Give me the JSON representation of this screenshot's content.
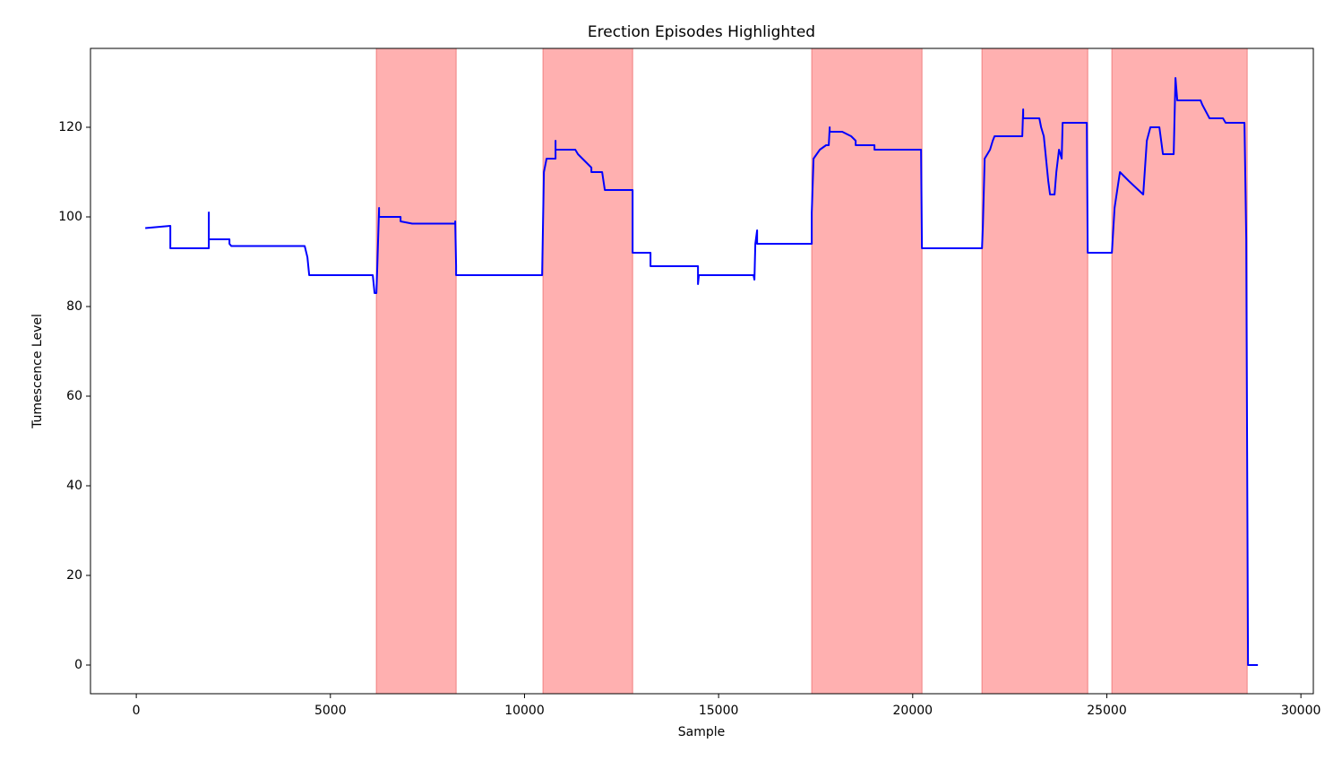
{
  "chart_data": {
    "type": "line",
    "title": "Erection Episodes Highlighted",
    "xlabel": "Sample",
    "ylabel": "Tumescence Level",
    "xlim": [
      -1180,
      30320
    ],
    "ylim": [
      -6.4,
      137.6
    ],
    "xticks": [
      0,
      5000,
      10000,
      15000,
      20000,
      25000,
      30000
    ],
    "yticks": [
      0,
      20,
      40,
      60,
      80,
      100,
      120
    ],
    "grid": false,
    "span_color": "#ffb0b0",
    "spans": [
      [
        6185,
        8238
      ],
      [
        10477,
        12785
      ],
      [
        17400,
        20238
      ],
      [
        21785,
        24508
      ],
      [
        25131,
        28615
      ]
    ],
    "x": [
      231,
      877,
      877,
      1869,
      1869,
      1869,
      2400,
      2400,
      2446,
      4338,
      4408,
      4454,
      6092,
      6138,
      6185,
      6208,
      6254,
      6254,
      6808,
      6808,
      7108,
      8215,
      8215,
      8238,
      8238,
      10454,
      10500,
      10569,
      10800,
      10800,
      10800,
      11308,
      11377,
      11492,
      11608,
      11723,
      11723,
      12000,
      12069,
      12785,
      12785,
      13246,
      13246,
      14469,
      14469,
      14492,
      15900,
      15923,
      15946,
      15992,
      15992,
      17400,
      17400,
      17446,
      17608,
      17769,
      17838,
      17862,
      17862,
      18185,
      18415,
      18531,
      18531,
      19015,
      19015,
      20215,
      20238,
      21785,
      21808,
      21854,
      21992,
      22062,
      22108,
      22823,
      22846,
      22846,
      23262,
      23308,
      23377,
      23492,
      23538,
      23654,
      23700,
      23769,
      23838,
      23862,
      24485,
      24508,
      25131,
      25200,
      25338,
      25569,
      25938,
      26031,
      26123,
      26354,
      26446,
      26723,
      26769,
      26815,
      27415,
      27462,
      27646,
      27992,
      28062,
      28546,
      28592,
      28638,
      28892
    ],
    "series": [
      {
        "name": "Tumescence",
        "color": "#0000ff",
        "values": [
          97.5,
          98,
          93,
          93,
          101,
          95,
          95,
          94,
          93.5,
          93.5,
          91,
          87,
          87,
          83,
          83,
          89,
          102,
          100,
          100,
          99,
          98.5,
          98.5,
          99,
          89,
          87,
          87,
          110,
          113,
          113,
          117,
          115,
          115,
          114,
          113,
          112,
          111,
          110,
          110,
          106,
          106,
          92,
          92,
          89,
          89,
          85,
          87,
          87,
          86,
          94,
          97,
          94,
          94,
          101,
          113,
          115,
          116,
          116,
          120,
          119,
          119,
          118,
          117,
          116,
          116,
          115,
          115,
          93,
          93,
          98,
          113,
          115,
          117,
          118,
          118,
          124,
          122,
          122,
          120,
          118,
          108,
          105,
          105,
          110,
          115,
          113,
          121,
          121,
          92,
          92,
          102,
          110,
          108,
          105,
          117,
          120,
          120,
          114,
          114,
          131,
          126,
          126,
          125,
          122,
          122,
          121,
          121,
          95,
          0,
          0
        ]
      }
    ]
  }
}
